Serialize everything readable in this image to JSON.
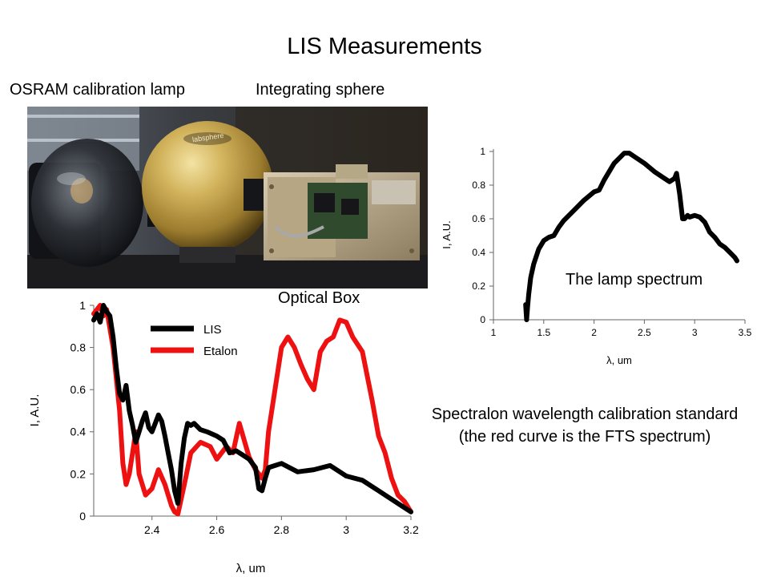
{
  "slide": {
    "title": "LIS Measurements",
    "labels": {
      "lamp": "OSRAM calibration lamp",
      "sphere": "Integrating sphere",
      "optical_box": "Optical Box",
      "lamp_spectrum": "The lamp spectrum"
    },
    "caption": "Spectralon wavelength calibration standard (the red curve is the FTS spectrum)",
    "photo_brand": "labsphere"
  },
  "colors": {
    "lis": "#000000",
    "etalon": "#ee1111",
    "sphere_gold": "#c9a84c",
    "background": "#ffffff"
  },
  "chart_data": [
    {
      "id": "lamp",
      "type": "line",
      "xlabel": "λ, um",
      "ylabel": "I, A.U.",
      "xlim": [
        1,
        3.5
      ],
      "ylim": [
        0,
        1
      ],
      "xticks": [
        1,
        1.5,
        2,
        2.5,
        3,
        3.5
      ],
      "xtick_labels": [
        "1",
        "1.5",
        "2",
        "2.5",
        "3",
        "3.5"
      ],
      "yticks": [
        0,
        0.2,
        0.4,
        0.6,
        0.8,
        1
      ],
      "ytick_labels": [
        "0",
        "0.2",
        "0.4",
        "0.6",
        "0.8",
        "1"
      ],
      "grid": false,
      "series": [
        {
          "x": [
            1.32,
            1.33,
            1.34,
            1.35,
            1.37,
            1.4,
            1.45,
            1.5,
            1.55,
            1.6,
            1.65,
            1.7,
            1.8,
            1.9,
            2.0,
            2.05,
            2.1,
            2.2,
            2.3,
            2.35,
            2.4,
            2.5,
            2.6,
            2.7,
            2.75,
            2.8,
            2.82,
            2.85,
            2.88,
            2.9,
            2.93,
            2.95,
            3.0,
            3.05,
            3.1,
            3.15,
            3.2,
            3.25,
            3.3,
            3.35,
            3.4,
            3.42
          ],
          "y": [
            0.09,
            0.0,
            0.08,
            0.15,
            0.25,
            0.33,
            0.42,
            0.47,
            0.49,
            0.5,
            0.55,
            0.59,
            0.65,
            0.71,
            0.76,
            0.77,
            0.83,
            0.93,
            0.99,
            0.99,
            0.97,
            0.93,
            0.88,
            0.84,
            0.82,
            0.84,
            0.87,
            0.75,
            0.6,
            0.6,
            0.62,
            0.61,
            0.62,
            0.61,
            0.58,
            0.52,
            0.49,
            0.45,
            0.43,
            0.4,
            0.37,
            0.35
          ]
        }
      ]
    },
    {
      "id": "spectralon",
      "type": "line",
      "xlabel": "λ, um",
      "ylabel": "I, A.U.",
      "xlim": [
        2.22,
        3.2
      ],
      "ylim": [
        0,
        1
      ],
      "xticks": [
        2.4,
        2.6,
        2.8,
        3,
        3.2
      ],
      "xtick_labels": [
        "2.4",
        "2.6",
        "2.8",
        "3",
        "3.2"
      ],
      "yticks": [
        0,
        0.2,
        0.4,
        0.6,
        0.8,
        1
      ],
      "ytick_labels": [
        "0",
        "0.2",
        "0.4",
        "0.6",
        "0.8",
        "1"
      ],
      "grid": false,
      "legend": "top-left",
      "series": [
        {
          "name": "LIS",
          "x": [
            2.22,
            2.23,
            2.24,
            2.25,
            2.26,
            2.27,
            2.28,
            2.29,
            2.3,
            2.31,
            2.32,
            2.33,
            2.34,
            2.35,
            2.36,
            2.37,
            2.38,
            2.39,
            2.4,
            2.41,
            2.42,
            2.43,
            2.44,
            2.45,
            2.46,
            2.47,
            2.48,
            2.49,
            2.5,
            2.51,
            2.52,
            2.53,
            2.55,
            2.57,
            2.6,
            2.62,
            2.64,
            2.66,
            2.68,
            2.7,
            2.72,
            2.73,
            2.74,
            2.75,
            2.76,
            2.78,
            2.8,
            2.85,
            2.9,
            2.95,
            3.0,
            3.05,
            3.1,
            3.15,
            3.18,
            3.2
          ],
          "y": [
            0.93,
            0.96,
            0.92,
            1.0,
            0.97,
            0.95,
            0.85,
            0.7,
            0.58,
            0.55,
            0.62,
            0.5,
            0.43,
            0.35,
            0.4,
            0.45,
            0.49,
            0.42,
            0.4,
            0.44,
            0.48,
            0.45,
            0.38,
            0.3,
            0.22,
            0.12,
            0.06,
            0.25,
            0.37,
            0.44,
            0.43,
            0.44,
            0.41,
            0.4,
            0.38,
            0.36,
            0.3,
            0.31,
            0.29,
            0.27,
            0.23,
            0.13,
            0.12,
            0.18,
            0.23,
            0.24,
            0.25,
            0.21,
            0.22,
            0.24,
            0.19,
            0.17,
            0.12,
            0.07,
            0.04,
            0.02
          ]
        },
        {
          "name": "Etalon",
          "x": [
            2.22,
            2.24,
            2.25,
            2.26,
            2.28,
            2.3,
            2.31,
            2.32,
            2.33,
            2.34,
            2.35,
            2.36,
            2.38,
            2.4,
            2.42,
            2.44,
            2.46,
            2.47,
            2.48,
            2.5,
            2.52,
            2.55,
            2.58,
            2.6,
            2.63,
            2.65,
            2.67,
            2.7,
            2.72,
            2.74,
            2.75,
            2.76,
            2.78,
            2.8,
            2.82,
            2.84,
            2.86,
            2.88,
            2.9,
            2.92,
            2.94,
            2.96,
            2.98,
            3.0,
            3.02,
            3.05,
            3.08,
            3.1,
            3.12,
            3.14,
            3.16,
            3.18,
            3.2
          ],
          "y": [
            0.96,
            1.0,
            0.95,
            0.98,
            0.8,
            0.5,
            0.25,
            0.15,
            0.2,
            0.3,
            0.4,
            0.2,
            0.1,
            0.13,
            0.22,
            0.15,
            0.05,
            0.02,
            0.01,
            0.15,
            0.3,
            0.35,
            0.33,
            0.27,
            0.33,
            0.3,
            0.44,
            0.28,
            0.22,
            0.18,
            0.22,
            0.4,
            0.6,
            0.8,
            0.85,
            0.8,
            0.72,
            0.65,
            0.6,
            0.78,
            0.83,
            0.85,
            0.93,
            0.92,
            0.85,
            0.78,
            0.55,
            0.38,
            0.3,
            0.18,
            0.1,
            0.07,
            0.02
          ]
        }
      ]
    }
  ]
}
